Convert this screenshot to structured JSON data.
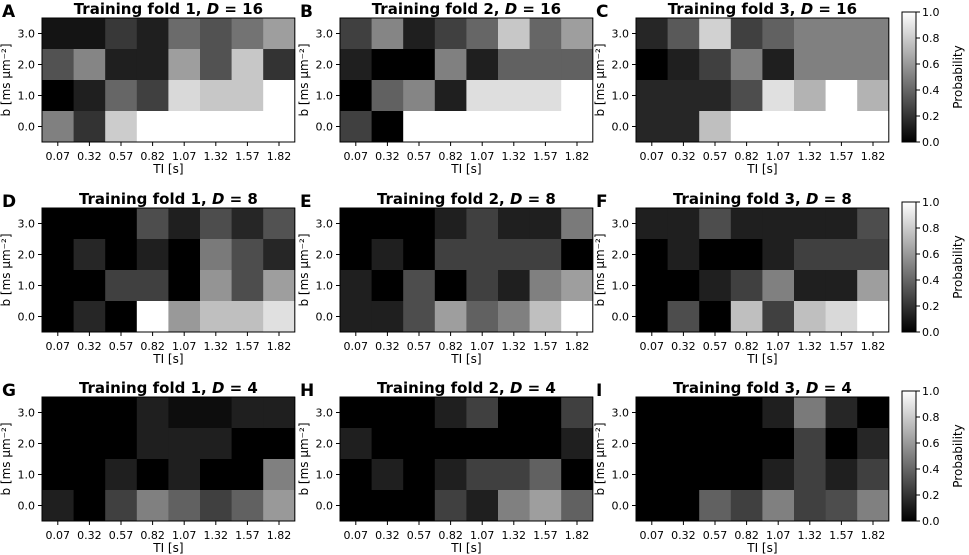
{
  "chart_data": {
    "type": "heatmap",
    "x_categories": [
      "0.07",
      "0.32",
      "0.57",
      "0.82",
      "1.07",
      "1.32",
      "1.57",
      "1.82"
    ],
    "y_categories": [
      "0.0",
      "1.0",
      "2.0",
      "3.0"
    ],
    "xlabel": "TI  [s]",
    "ylabel": "b  [ms μm⁻²]",
    "colorbar": {
      "label": "Probability",
      "ticks": [
        "0.0",
        "0.2",
        "0.4",
        "0.6",
        "0.8",
        "1.0"
      ],
      "range": [
        0,
        1
      ],
      "colormap": "gray"
    },
    "panels": [
      {
        "letter": "A",
        "title_prefix": "Training fold 1, ",
        "title_var": "D",
        "title_suffix": " = 16",
        "values": [
          [
            0.08,
            0.08,
            0.22,
            0.12,
            0.42,
            0.32,
            0.45,
            0.62
          ],
          [
            0.32,
            0.52,
            0.12,
            0.12,
            0.62,
            0.32,
            0.78,
            0.2
          ],
          [
            0.0,
            0.12,
            0.4,
            0.25,
            0.85,
            0.78,
            0.78,
            1.0
          ],
          [
            0.5,
            0.2,
            0.8,
            1.0,
            1.0,
            1.0,
            1.0,
            1.0
          ]
        ]
      },
      {
        "letter": "B",
        "title_prefix": "Training fold 2, ",
        "title_var": "D",
        "title_suffix": " = 16",
        "values": [
          [
            0.25,
            0.52,
            0.12,
            0.25,
            0.4,
            0.78,
            0.4,
            0.62
          ],
          [
            0.12,
            0.0,
            0.0,
            0.5,
            0.12,
            0.38,
            0.38,
            0.38
          ],
          [
            0.0,
            0.38,
            0.52,
            0.12,
            0.87,
            0.87,
            0.87,
            1.0
          ],
          [
            0.25,
            0.0,
            1.0,
            1.0,
            1.0,
            1.0,
            1.0,
            1.0
          ]
        ]
      },
      {
        "letter": "C",
        "title_prefix": "Training fold 3, ",
        "title_var": "D",
        "title_suffix": " = 16",
        "values": [
          [
            0.15,
            0.35,
            0.82,
            0.25,
            0.38,
            0.5,
            0.5,
            0.5
          ],
          [
            0.0,
            0.12,
            0.25,
            0.5,
            0.12,
            0.5,
            0.5,
            0.5
          ],
          [
            0.15,
            0.15,
            0.15,
            0.3,
            0.88,
            0.7,
            1.0,
            0.7
          ],
          [
            0.15,
            0.15,
            0.75,
            1.0,
            1.0,
            1.0,
            1.0,
            1.0
          ]
        ]
      },
      {
        "letter": "D",
        "title_prefix": "Training fold 1, ",
        "title_var": "D",
        "title_suffix": " = 8",
        "values": [
          [
            0.0,
            0.0,
            0.0,
            0.3,
            0.12,
            0.3,
            0.15,
            0.32
          ],
          [
            0.0,
            0.15,
            0.0,
            0.12,
            0.0,
            0.48,
            0.3,
            0.15
          ],
          [
            0.0,
            0.0,
            0.25,
            0.25,
            0.0,
            0.58,
            0.3,
            0.62
          ],
          [
            0.0,
            0.15,
            0.0,
            1.0,
            0.6,
            0.75,
            0.75,
            0.88
          ]
        ]
      },
      {
        "letter": "E",
        "title_prefix": "Training fold 2, ",
        "title_var": "D",
        "title_suffix": " = 8",
        "values": [
          [
            0.0,
            0.0,
            0.0,
            0.12,
            0.25,
            0.12,
            0.12,
            0.48
          ],
          [
            0.0,
            0.12,
            0.0,
            0.25,
            0.25,
            0.25,
            0.25,
            0.0
          ],
          [
            0.12,
            0.0,
            0.3,
            0.0,
            0.25,
            0.12,
            0.5,
            0.62
          ],
          [
            0.12,
            0.12,
            0.3,
            0.62,
            0.38,
            0.5,
            0.75,
            1.0
          ]
        ]
      },
      {
        "letter": "F",
        "title_prefix": "Training fold 3, ",
        "title_var": "D",
        "title_suffix": " = 8",
        "values": [
          [
            0.12,
            0.12,
            0.3,
            0.12,
            0.12,
            0.12,
            0.12,
            0.3
          ],
          [
            0.0,
            0.12,
            0.0,
            0.0,
            0.12,
            0.25,
            0.25,
            0.25
          ],
          [
            0.0,
            0.0,
            0.12,
            0.25,
            0.5,
            0.12,
            0.12,
            0.62
          ],
          [
            0.0,
            0.3,
            0.0,
            0.75,
            0.25,
            0.75,
            0.85,
            1.0
          ]
        ]
      },
      {
        "letter": "G",
        "title_prefix": "Training fold 1, ",
        "title_var": "D",
        "title_suffix": " = 4",
        "values": [
          [
            0.0,
            0.0,
            0.0,
            0.12,
            0.05,
            0.05,
            0.12,
            0.12
          ],
          [
            0.0,
            0.0,
            0.0,
            0.12,
            0.12,
            0.12,
            0.0,
            0.0
          ],
          [
            0.0,
            0.0,
            0.12,
            0.0,
            0.12,
            0.0,
            0.0,
            0.5
          ],
          [
            0.12,
            0.0,
            0.25,
            0.5,
            0.38,
            0.25,
            0.38,
            0.6
          ]
        ]
      },
      {
        "letter": "H",
        "title_prefix": "Training fold 2, ",
        "title_var": "D",
        "title_suffix": " = 4",
        "values": [
          [
            0.0,
            0.0,
            0.0,
            0.12,
            0.25,
            0.0,
            0.0,
            0.25
          ],
          [
            0.12,
            0.0,
            0.0,
            0.0,
            0.0,
            0.0,
            0.0,
            0.12
          ],
          [
            0.0,
            0.12,
            0.0,
            0.12,
            0.25,
            0.25,
            0.38,
            0.0
          ],
          [
            0.0,
            0.0,
            0.0,
            0.25,
            0.12,
            0.5,
            0.62,
            0.38
          ]
        ]
      },
      {
        "letter": "I",
        "title_prefix": "Training fold 3, ",
        "title_var": "D",
        "title_suffix": " = 4",
        "values": [
          [
            0.0,
            0.0,
            0.0,
            0.0,
            0.12,
            0.48,
            0.15,
            0.0
          ],
          [
            0.0,
            0.0,
            0.0,
            0.0,
            0.0,
            0.25,
            0.0,
            0.15
          ],
          [
            0.0,
            0.0,
            0.0,
            0.0,
            0.12,
            0.25,
            0.12,
            0.25
          ],
          [
            0.0,
            0.0,
            0.38,
            0.25,
            0.5,
            0.25,
            0.3,
            0.5
          ]
        ]
      }
    ]
  }
}
